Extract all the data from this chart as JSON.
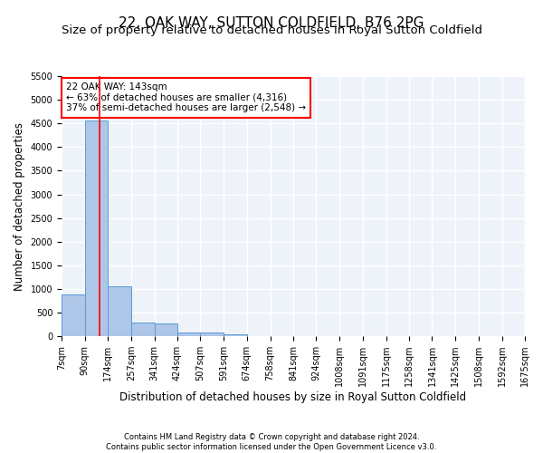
{
  "title": "22, OAK WAY, SUTTON COLDFIELD, B76 2PG",
  "subtitle": "Size of property relative to detached houses in Royal Sutton Coldfield",
  "xlabel": "Distribution of detached houses by size in Royal Sutton Coldfield",
  "ylabel": "Number of detached properties",
  "footnote1": "Contains HM Land Registry data © Crown copyright and database right 2024.",
  "footnote2": "Contains public sector information licensed under the Open Government Licence v3.0.",
  "annotation_line1": "22 OAK WAY: 143sqm",
  "annotation_line2": "← 63% of detached houses are smaller (4,316)",
  "annotation_line3": "37% of semi-detached houses are larger (2,548) →",
  "bar_color": "#aec6e8",
  "bar_edge_color": "#5b9bd5",
  "red_line_x": 143,
  "ylim": [
    0,
    5500
  ],
  "yticks": [
    0,
    500,
    1000,
    1500,
    2000,
    2500,
    3000,
    3500,
    4000,
    4500,
    5000,
    5500
  ],
  "bin_edges": [
    7,
    90,
    174,
    257,
    341,
    424,
    507,
    591,
    674,
    758,
    841,
    924,
    1008,
    1091,
    1175,
    1258,
    1341,
    1425,
    1508,
    1592,
    1675
  ],
  "bin_heights": [
    880,
    4560,
    1060,
    290,
    280,
    90,
    80,
    50,
    0,
    0,
    0,
    0,
    0,
    0,
    0,
    0,
    0,
    0,
    0,
    0
  ],
  "background_color": "#eef3fa",
  "grid_color": "#ffffff",
  "title_fontsize": 11,
  "subtitle_fontsize": 9.5,
  "axis_label_fontsize": 8.5,
  "tick_fontsize": 7,
  "annotation_fontsize": 7.5,
  "footnote_fontsize": 6
}
